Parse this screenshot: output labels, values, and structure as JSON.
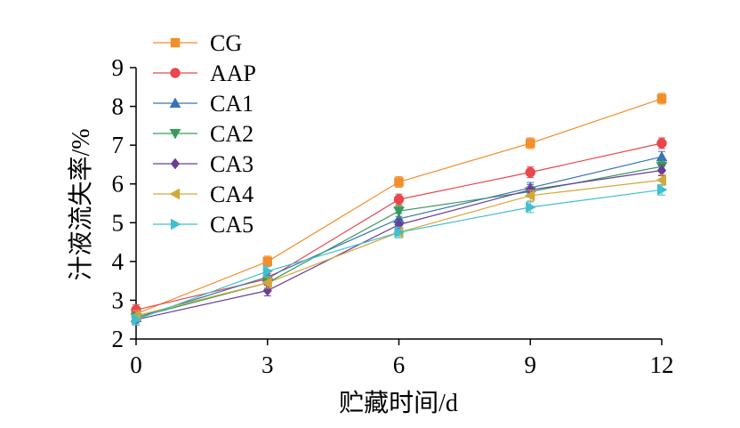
{
  "chart_data": {
    "type": "line",
    "title": "",
    "xlabel": "贮藏时间/d",
    "ylabel": "汁液流失率/%",
    "x": [
      0,
      3,
      6,
      9,
      12
    ],
    "xticks": [
      "0",
      "3",
      "6",
      "9",
      "12"
    ],
    "yticks": [
      "2",
      "3",
      "4",
      "5",
      "6",
      "7",
      "8",
      "9"
    ],
    "xlim": [
      0,
      12
    ],
    "ylim": [
      2,
      9
    ],
    "grid": false,
    "legend_position": "top-left",
    "series": [
      {
        "name": "CG",
        "color": "#f28e2b",
        "marker": "square",
        "values": [
          2.65,
          4.0,
          6.05,
          7.05,
          8.2
        ]
      },
      {
        "name": "AAP",
        "color": "#e8474c",
        "marker": "circle",
        "values": [
          2.75,
          3.55,
          5.6,
          6.3,
          7.05
        ]
      },
      {
        "name": "CA1",
        "color": "#3a74b3",
        "marker": "triangle-up",
        "values": [
          2.55,
          3.6,
          5.1,
          5.9,
          6.7
        ]
      },
      {
        "name": "CA2",
        "color": "#3a9a5b",
        "marker": "triangle-down",
        "values": [
          2.55,
          3.45,
          5.3,
          5.8,
          6.45
        ]
      },
      {
        "name": "CA3",
        "color": "#6a3d9a",
        "marker": "diamond",
        "values": [
          2.5,
          3.25,
          4.95,
          5.85,
          6.35
        ]
      },
      {
        "name": "CA4",
        "color": "#d4a73a",
        "marker": "triangle-left",
        "values": [
          2.6,
          3.45,
          4.75,
          5.7,
          6.1
        ]
      },
      {
        "name": "CA5",
        "color": "#3fbfcf",
        "marker": "triangle-right",
        "values": [
          2.5,
          3.75,
          4.75,
          5.4,
          5.85
        ]
      }
    ]
  }
}
